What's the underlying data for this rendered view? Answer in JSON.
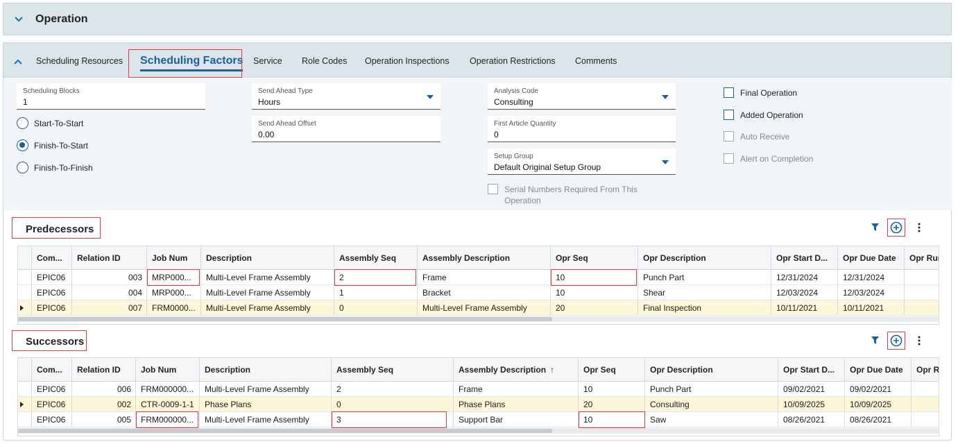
{
  "operation_header": {
    "title": "Operation"
  },
  "tabs": [
    {
      "label": "Scheduling Resources"
    },
    {
      "label": "Scheduling Factors",
      "active": true
    },
    {
      "label": "Service"
    },
    {
      "label": "Role Codes"
    },
    {
      "label": "Operation Inspections"
    },
    {
      "label": "Operation Restrictions"
    },
    {
      "label": "Comments"
    }
  ],
  "form": {
    "scheduling_blocks": {
      "label": "Scheduling Blocks",
      "value": "1"
    },
    "send_ahead_type": {
      "label": "Send Ahead Type",
      "value": "Hours"
    },
    "send_ahead_offset": {
      "label": "Send Ahead Offset",
      "value": "0.00"
    },
    "analysis_code": {
      "label": "Analysis Code",
      "value": "Consulting"
    },
    "first_article_quantity": {
      "label": "First Article Quantity",
      "value": "0"
    },
    "setup_group": {
      "label": "Setup Group",
      "value": "Default Original Setup Group"
    },
    "radios": [
      {
        "label": "Start-To-Start",
        "checked": false
      },
      {
        "label": "Finish-To-Start",
        "checked": true
      },
      {
        "label": "Finish-To-Finish",
        "checked": false
      }
    ],
    "serial_numbers": {
      "label_line1": "Serial Numbers Required From This",
      "label_line2": "Operation"
    },
    "checkboxes": [
      {
        "label": "Final Operation",
        "disabled": false
      },
      {
        "label": "Added Operation",
        "disabled": false
      },
      {
        "label": "Auto Receive",
        "disabled": true
      },
      {
        "label": "Alert on Completion",
        "disabled": true
      }
    ]
  },
  "grid_columns_pred": [
    "Com...",
    "Relation ID",
    "Job Num",
    "Description",
    "Assembly Seq",
    "Assembly Description",
    "Opr Seq",
    "Opr Description",
    "Opr Start D...",
    "Opr Due Date",
    "Opr Run"
  ],
  "grid_columns_succ": [
    "Com...",
    "Relation ID",
    "Job Num",
    "Description",
    "Assembly Seq",
    "Assembly Description",
    "Opr Seq",
    "Opr Description",
    "Opr Start D...",
    "Opr Due Date",
    "Opr Ru"
  ],
  "sort_arrow": "↑",
  "predecessors": {
    "title": "Predecessors",
    "rows": [
      {
        "company": "EPIC06",
        "relation_id": "003",
        "job_num": "MRP000...",
        "description": "Multi-Level Frame Assembly",
        "assembly_seq": "2",
        "assembly_desc": "Frame",
        "opr_seq": "10",
        "opr_desc": "Punch Part",
        "opr_start": "12/31/2024",
        "opr_due": "12/31/2024",
        "selected": false
      },
      {
        "company": "EPIC06",
        "relation_id": "004",
        "job_num": "MRP000...",
        "description": "Multi-Level Frame Assembly",
        "assembly_seq": "1",
        "assembly_desc": "Bracket",
        "opr_seq": "10",
        "opr_desc": "Shear",
        "opr_start": "12/03/2024",
        "opr_due": "12/03/2024",
        "selected": false
      },
      {
        "company": "EPIC06",
        "relation_id": "007",
        "job_num": "FRM0000...",
        "description": "Multi-Level Frame Assembly",
        "assembly_seq": "0",
        "assembly_desc": "Multi-Level Frame Assembly",
        "opr_seq": "20",
        "opr_desc": "Final Inspection",
        "opr_start": "10/11/2021",
        "opr_due": "10/11/2021",
        "selected": true
      }
    ]
  },
  "successors": {
    "title": "Successors",
    "rows": [
      {
        "company": "EPIC06",
        "relation_id": "006",
        "job_num": "FRM000000...",
        "description": "Multi-Level Frame Assembly",
        "assembly_seq": "2",
        "assembly_desc": "Frame",
        "opr_seq": "10",
        "opr_desc": "Punch Part",
        "opr_start": "09/02/2021",
        "opr_due": "09/02/2021",
        "selected": false
      },
      {
        "company": "EPIC06",
        "relation_id": "002",
        "job_num": "CTR-0009-1-1",
        "description": "Phase Plans",
        "assembly_seq": "0",
        "assembly_desc": "Phase Plans",
        "opr_seq": "20",
        "opr_desc": "Consulting",
        "opr_start": "10/09/2025",
        "opr_due": "10/09/2025",
        "selected": true
      },
      {
        "company": "EPIC06",
        "relation_id": "005",
        "job_num": "FRM000000...",
        "description": "Multi-Level Frame Assembly",
        "assembly_seq": "3",
        "assembly_desc": "Support Bar",
        "opr_seq": "10",
        "opr_desc": "Saw",
        "opr_start": "08/26/2021",
        "opr_due": "08/26/2021",
        "selected": false
      }
    ]
  },
  "colors": {
    "accent": "#1a5f9e",
    "highlight_border": "#e0393e",
    "selected_row": "#fdf7d9",
    "header_bg": "#dbe5ea"
  }
}
